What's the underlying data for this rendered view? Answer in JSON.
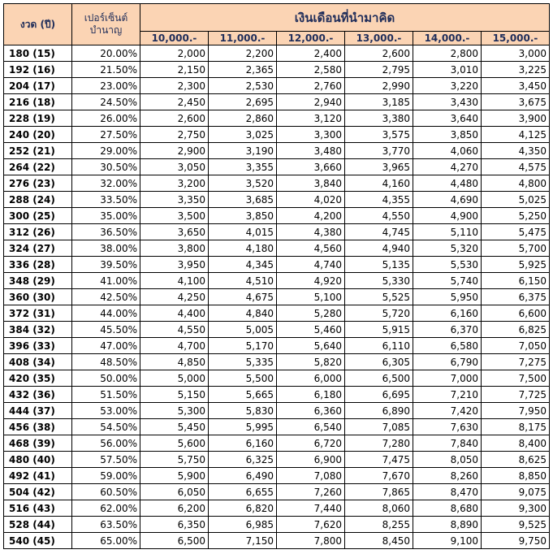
{
  "header": {
    "period": "งวด (ปี)",
    "percent": [
      "เปอร์เซ็นต์",
      "บำนาญ"
    ],
    "salary_title": "เงินเดือนที่นำมาคิด",
    "salaries": [
      "10,000.-",
      "11,000.-",
      "12,000.-",
      "13,000.-",
      "14,000.-",
      "15,000.-"
    ]
  },
  "table": {
    "rows": [
      [
        "180 (15)",
        "20.00%",
        "2,000",
        "2,200",
        "2,400",
        "2,600",
        "2,800",
        "3,000"
      ],
      [
        "192 (16)",
        "21.50%",
        "2,150",
        "2,365",
        "2,580",
        "2,795",
        "3,010",
        "3,225"
      ],
      [
        "204 (17)",
        "23.00%",
        "2,300",
        "2,530",
        "2,760",
        "2,990",
        "3,220",
        "3,450"
      ],
      [
        "216 (18)",
        "24.50%",
        "2,450",
        "2,695",
        "2,940",
        "3,185",
        "3,430",
        "3,675"
      ],
      [
        "228 (19)",
        "26.00%",
        "2,600",
        "2,860",
        "3,120",
        "3,380",
        "3,640",
        "3,900"
      ],
      [
        "240 (20)",
        "27.50%",
        "2,750",
        "3,025",
        "3,300",
        "3,575",
        "3,850",
        "4,125"
      ],
      [
        "252 (21)",
        "29.00%",
        "2,900",
        "3,190",
        "3,480",
        "3,770",
        "4,060",
        "4,350"
      ],
      [
        "264 (22)",
        "30.50%",
        "3,050",
        "3,355",
        "3,660",
        "3,965",
        "4,270",
        "4,575"
      ],
      [
        "276 (23)",
        "32.00%",
        "3,200",
        "3,520",
        "3,840",
        "4,160",
        "4,480",
        "4,800"
      ],
      [
        "288 (24)",
        "33.50%",
        "3,350",
        "3,685",
        "4,020",
        "4,355",
        "4,690",
        "5,025"
      ],
      [
        "300 (25)",
        "35.00%",
        "3,500",
        "3,850",
        "4,200",
        "4,550",
        "4,900",
        "5,250"
      ],
      [
        "312 (26)",
        "36.50%",
        "3,650",
        "4,015",
        "4,380",
        "4,745",
        "5,110",
        "5,475"
      ],
      [
        "324 (27)",
        "38.00%",
        "3,800",
        "4,180",
        "4,560",
        "4,940",
        "5,320",
        "5,700"
      ],
      [
        "336 (28)",
        "39.50%",
        "3,950",
        "4,345",
        "4,740",
        "5,135",
        "5,530",
        "5,925"
      ],
      [
        "348 (29)",
        "41.00%",
        "4,100",
        "4,510",
        "4,920",
        "5,330",
        "5,740",
        "6,150"
      ],
      [
        "360 (30)",
        "42.50%",
        "4,250",
        "4,675",
        "5,100",
        "5,525",
        "5,950",
        "6,375"
      ],
      [
        "372 (31)",
        "44.00%",
        "4,400",
        "4,840",
        "5,280",
        "5,720",
        "6,160",
        "6,600"
      ],
      [
        "384 (32)",
        "45.50%",
        "4,550",
        "5,005",
        "5,460",
        "5,915",
        "6,370",
        "6,825"
      ],
      [
        "396 (33)",
        "47.00%",
        "4,700",
        "5,170",
        "5,640",
        "6,110",
        "6,580",
        "7,050"
      ],
      [
        "408 (34)",
        "48.50%",
        "4,850",
        "5,335",
        "5,820",
        "6,305",
        "6,790",
        "7,275"
      ],
      [
        "420 (35)",
        "50.00%",
        "5,000",
        "5,500",
        "6,000",
        "6,500",
        "7,000",
        "7,500"
      ],
      [
        "432 (36)",
        "51.50%",
        "5,150",
        "5,665",
        "6,180",
        "6,695",
        "7,210",
        "7,725"
      ],
      [
        "444 (37)",
        "53.00%",
        "5,300",
        "5,830",
        "6,360",
        "6,890",
        "7,420",
        "7,950"
      ],
      [
        "456 (38)",
        "54.50%",
        "5,450",
        "5,995",
        "6,540",
        "7,085",
        "7,630",
        "8,175"
      ],
      [
        "468 (39)",
        "56.00%",
        "5,600",
        "6,160",
        "6,720",
        "7,280",
        "7,840",
        "8,400"
      ],
      [
        "480 (40)",
        "57.50%",
        "5,750",
        "6,325",
        "6,900",
        "7,475",
        "8,050",
        "8,625"
      ],
      [
        "492 (41)",
        "59.00%",
        "5,900",
        "6,490",
        "7,080",
        "7,670",
        "8,260",
        "8,850"
      ],
      [
        "504 (42)",
        "60.50%",
        "6,050",
        "6,655",
        "7,260",
        "7,865",
        "8,470",
        "9,075"
      ],
      [
        "516 (43)",
        "62.00%",
        "6,200",
        "6,820",
        "7,440",
        "8,060",
        "8,680",
        "9,300"
      ],
      [
        "528 (44)",
        "63.50%",
        "6,350",
        "6,985",
        "7,620",
        "8,255",
        "8,890",
        "9,525"
      ],
      [
        "540 (45)",
        "65.00%",
        "6,500",
        "7,150",
        "7,800",
        "8,450",
        "9,100",
        "9,750"
      ]
    ]
  }
}
